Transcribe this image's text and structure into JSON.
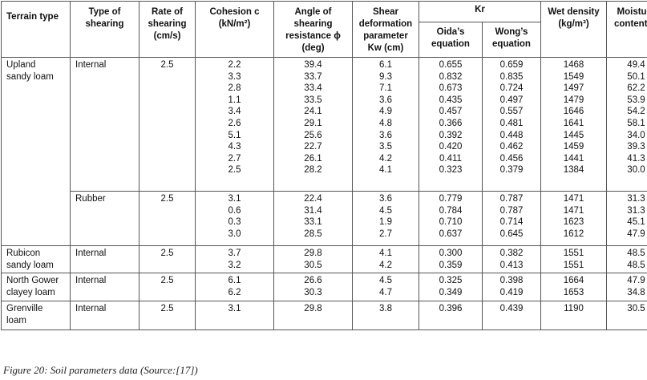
{
  "headers": {
    "terrain": "Terrain type",
    "shearing": [
      "Type of",
      "shearing"
    ],
    "rate": [
      "Rate of",
      "shearing",
      "(cm/s)"
    ],
    "cohesion": [
      "Cohesion c",
      "(kN/m²)"
    ],
    "angle": [
      "Angle of",
      "shearing",
      "resistance ϕ",
      "(deg)"
    ],
    "shear_def": [
      "Shear",
      "deformation",
      "parameter",
      "Kw (cm)"
    ],
    "kr": "Kr",
    "oida": [
      "Oida’s",
      "equation"
    ],
    "wong": [
      "Wong’s",
      "equation"
    ],
    "density": [
      "Wet density",
      "(kg/m³)"
    ],
    "moisture": [
      "Moisture",
      "content %"
    ]
  },
  "groups": [
    {
      "terrain": [
        "Upland",
        "sandy loam"
      ],
      "shearing": "Internal",
      "rate": "2.5",
      "cohesion": [
        "2.2",
        "3.3",
        "2.8",
        "1.1",
        "3.4",
        "2.6",
        "5.1",
        "4.3",
        "2.7",
        "2.5"
      ],
      "angle": [
        "39.4",
        "33.7",
        "33.4",
        "33.5",
        "24.1",
        "29.1",
        "25.6",
        "22.7",
        "26.1",
        "28.2"
      ],
      "kw": [
        "6.1",
        "9.3",
        "7.1",
        "3.6",
        "4.9",
        "4.8",
        "3.6",
        "3.5",
        "4.2",
        "4.1"
      ],
      "oida": [
        "0.655",
        "0.832",
        "0.673",
        "0.435",
        "0.457",
        "0.366",
        "0.392",
        "0.420",
        "0.411",
        "0.323"
      ],
      "wong": [
        "0.659",
        "0.835",
        "0.724",
        "0.497",
        "0.557",
        "0.481",
        "0.448",
        "0.462",
        "0.456",
        "0.379"
      ],
      "density": [
        "1468",
        "1549",
        "1497",
        "1479",
        "1646",
        "1641",
        "1445",
        "1459",
        "1441",
        "1384"
      ],
      "moisture": [
        "49.4",
        "50.1",
        "62.2",
        "53.9",
        "54.2",
        "58.1",
        "34.0",
        "39.3",
        "41.3",
        "30.0"
      ]
    },
    {
      "terrain": [],
      "shearing": "Rubber",
      "rate": "2.5",
      "cohesion": [
        "3.1",
        "0.6",
        "0.3",
        "3.0"
      ],
      "angle": [
        "22.4",
        "31.4",
        "33.1",
        "28.5"
      ],
      "kw": [
        "3.6",
        "4.5",
        "1.9",
        "2.7"
      ],
      "oida": [
        "0.779",
        "0.784",
        "0.710",
        "0.637"
      ],
      "wong": [
        "0.787",
        "0.787",
        "0.714",
        "0.645"
      ],
      "density": [
        "1471",
        "1471",
        "1623",
        "1612"
      ],
      "moisture": [
        "31.3",
        "31.3",
        "45.1",
        "47.9"
      ]
    },
    {
      "terrain": [
        "Rubicon",
        "sandy loam"
      ],
      "shearing": "Internal",
      "rate": "2.5",
      "cohesion": [
        "3.7",
        "3.2"
      ],
      "angle": [
        "29.8",
        "30.5"
      ],
      "kw": [
        "4.1",
        "4.2"
      ],
      "oida": [
        "0.300",
        "0.359"
      ],
      "wong": [
        "0.382",
        "0.413"
      ],
      "density": [
        "1551",
        "1551"
      ],
      "moisture": [
        "48.5",
        "48.5"
      ]
    },
    {
      "terrain": [
        "North Gower",
        "clayey loam"
      ],
      "shearing": "Internal",
      "rate": "2.5",
      "cohesion": [
        "6.1",
        "6.2"
      ],
      "angle": [
        "26.6",
        "30.3"
      ],
      "kw": [
        "4.5",
        "4.7"
      ],
      "oida": [
        "0.325",
        "0.349"
      ],
      "wong": [
        "0.398",
        "0.419"
      ],
      "density": [
        "1664",
        "1653"
      ],
      "moisture": [
        "47.9",
        "34.8"
      ]
    },
    {
      "terrain": [
        "Grenville",
        "loam"
      ],
      "shearing": "Internal",
      "rate": "2.5",
      "cohesion": [
        "3.1"
      ],
      "angle": [
        "29.8"
      ],
      "kw": [
        "3.8"
      ],
      "oida": [
        "0.396"
      ],
      "wong": [
        "0.439"
      ],
      "density": [
        "1190"
      ],
      "moisture": [
        "30.5"
      ]
    }
  ],
  "caption": "Figure 20: Soil parameters data (Source:[17])"
}
